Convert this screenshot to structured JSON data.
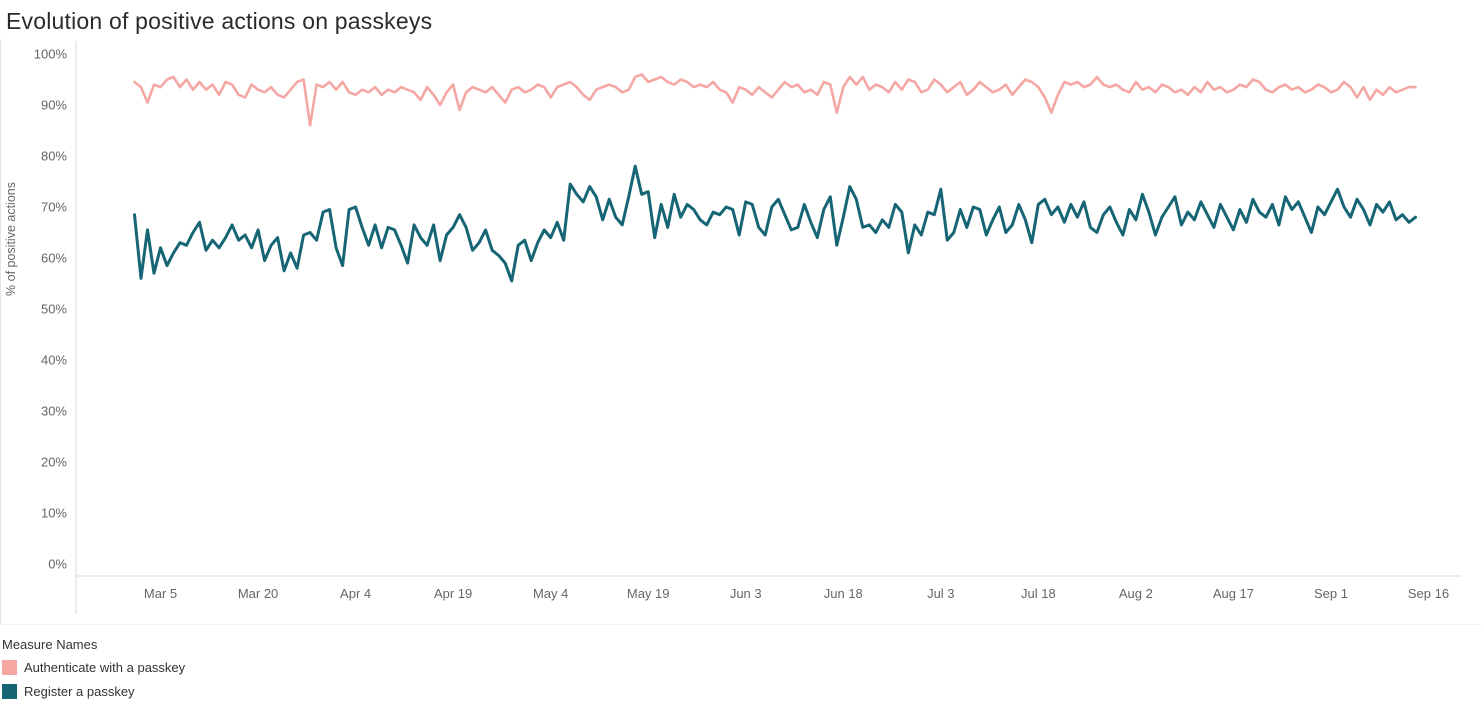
{
  "title": "Evolution of positive actions on passkeys",
  "legend": {
    "title": "Measure Names",
    "items": [
      {
        "label": "Authenticate with a passkey",
        "color": "#f4a7a3"
      },
      {
        "label": "Register a passkey",
        "color": "#166575"
      }
    ]
  },
  "chart_data": {
    "type": "line",
    "title": "Evolution of positive actions on passkeys",
    "xlabel": "",
    "ylabel": "% of positive actions",
    "ylim": [
      0,
      100
    ],
    "y_ticks": [
      {
        "label": "0%",
        "value": 0
      },
      {
        "label": "10%",
        "value": 10
      },
      {
        "label": "20%",
        "value": 20
      },
      {
        "label": "30%",
        "value": 30
      },
      {
        "label": "40%",
        "value": 40
      },
      {
        "label": "50%",
        "value": 50
      },
      {
        "label": "60%",
        "value": 60
      },
      {
        "label": "70%",
        "value": 70
      },
      {
        "label": "80%",
        "value": 80
      },
      {
        "label": "90%",
        "value": 90
      },
      {
        "label": "100%",
        "value": 100
      }
    ],
    "x_frequency": "daily",
    "x_start": "Mar 1",
    "x_ticks": [
      {
        "label": "Mar 5",
        "day": 4
      },
      {
        "label": "Mar 20",
        "day": 19
      },
      {
        "label": "Apr 4",
        "day": 34
      },
      {
        "label": "Apr 19",
        "day": 49
      },
      {
        "label": "May 4",
        "day": 64
      },
      {
        "label": "May 19",
        "day": 79
      },
      {
        "label": "Jun 3",
        "day": 94
      },
      {
        "label": "Jun 18",
        "day": 109
      },
      {
        "label": "Jul 3",
        "day": 124
      },
      {
        "label": "Jul 18",
        "day": 139
      },
      {
        "label": "Aug 2",
        "day": 154
      },
      {
        "label": "Aug 17",
        "day": 169
      },
      {
        "label": "Sep 1",
        "day": 184
      },
      {
        "label": "Sep 16",
        "day": 199
      }
    ],
    "grid": false,
    "legend_position": "bottom-left",
    "series": [
      {
        "name": "Authenticate with a passkey",
        "color": "#f4a7a3",
        "stroke_width": 2.6,
        "values": [
          94.5,
          93.5,
          90.5,
          94,
          93.5,
          95,
          95.5,
          93.5,
          95,
          93,
          94.5,
          93,
          94,
          92,
          94.5,
          94,
          92,
          91.5,
          94,
          93,
          92.5,
          93.5,
          92,
          91.5,
          93,
          94.5,
          95,
          86,
          94,
          93.5,
          94.5,
          93,
          94.5,
          92.5,
          92,
          93,
          92.5,
          93.5,
          92,
          93,
          92.5,
          93.5,
          93,
          92.5,
          91,
          93.5,
          92,
          90,
          92.5,
          94,
          89,
          92.5,
          93.5,
          93,
          92.5,
          93.5,
          92,
          90.5,
          93,
          93.5,
          92.5,
          93,
          94,
          93.5,
          91.5,
          93.5,
          94,
          94.5,
          93.5,
          92,
          91,
          93,
          93.5,
          94,
          93.5,
          92.5,
          93,
          95.5,
          96,
          94.5,
          95,
          95.5,
          94.5,
          94,
          95,
          94.5,
          93.5,
          94,
          93.5,
          94.5,
          93,
          92.5,
          90.5,
          93.5,
          93,
          92,
          93.5,
          92.5,
          91.5,
          93,
          94.5,
          93.5,
          94,
          92.5,
          93,
          92,
          94.5,
          94,
          88.5,
          93.5,
          95.5,
          94,
          95.5,
          93,
          94,
          93.5,
          92.5,
          94.5,
          93,
          95,
          94.5,
          92.5,
          93,
          95,
          94,
          92.5,
          93.5,
          94.5,
          92,
          93,
          94.5,
          93.5,
          92.5,
          93,
          94,
          92,
          93.5,
          95,
          94.5,
          93.5,
          91.5,
          88.5,
          92,
          94.5,
          94,
          94.5,
          93.5,
          94,
          95.5,
          94,
          93.5,
          94,
          93,
          92.5,
          94.5,
          93,
          93.5,
          92.5,
          94,
          93.5,
          92.5,
          93,
          92,
          93.5,
          92.5,
          94.5,
          93,
          93.5,
          92.5,
          93,
          94,
          93.5,
          95,
          94.5,
          93,
          92.5,
          93.5,
          94,
          93,
          93.5,
          92.5,
          93,
          94,
          93.5,
          92.5,
          93,
          94.5,
          93.5,
          91.5,
          93.5,
          91,
          93,
          92,
          93.5,
          92.5,
          93,
          93.5,
          93.5
        ]
      },
      {
        "name": "Register a passkey",
        "color": "#166575",
        "stroke_width": 3,
        "values": [
          68.5,
          56,
          65.5,
          57,
          62,
          58.5,
          61,
          63,
          62.5,
          65,
          67,
          61.5,
          63.5,
          62,
          64,
          66.5,
          63.5,
          64.5,
          62,
          65.5,
          59.5,
          62.5,
          64,
          57.5,
          61,
          58,
          64.5,
          65,
          63.5,
          69,
          69.5,
          62,
          58.5,
          69.5,
          70,
          66,
          62.5,
          66.5,
          62,
          66,
          65.5,
          62.5,
          59,
          66.5,
          64,
          62.5,
          66.5,
          59.5,
          64.5,
          66,
          68.5,
          66,
          61.5,
          63,
          65.5,
          61.5,
          60.5,
          59,
          55.5,
          62.5,
          63.5,
          59.5,
          63,
          65.5,
          64,
          67,
          63.5,
          74.5,
          72.5,
          71,
          74,
          72,
          67.5,
          71.5,
          68,
          66.5,
          72,
          78,
          72.5,
          73,
          64,
          70.5,
          66,
          72.5,
          68,
          70.5,
          69.5,
          67.5,
          66.5,
          69,
          68.5,
          70,
          69.5,
          64.5,
          71,
          70.5,
          66,
          64.5,
          70,
          71.5,
          68.5,
          65.5,
          66,
          70.5,
          67,
          64,
          69.5,
          72,
          62.5,
          68,
          74,
          71.5,
          66,
          66.5,
          65,
          67.5,
          66,
          70.5,
          69,
          61,
          66.5,
          64.5,
          69,
          68.5,
          73.5,
          63.5,
          65,
          69.5,
          66,
          70,
          69.5,
          64.5,
          67.5,
          70,
          65,
          66.5,
          70.5,
          67.5,
          63,
          70.5,
          71.5,
          68.5,
          70,
          67,
          70.5,
          68,
          71,
          66,
          65,
          68.5,
          70,
          67,
          64.5,
          69.5,
          67.5,
          72.5,
          69,
          64.5,
          68,
          70,
          72,
          66.5,
          69,
          67.5,
          71,
          68.5,
          66,
          70.5,
          68,
          65.5,
          69.5,
          67,
          71.5,
          69,
          68,
          70.5,
          66.5,
          72,
          69.5,
          71,
          68,
          65,
          70,
          68.5,
          71,
          73.5,
          70,
          68,
          71.5,
          69.5,
          66.5,
          70.5,
          69,
          71,
          67.5,
          68.5,
          67,
          68
        ]
      }
    ]
  }
}
